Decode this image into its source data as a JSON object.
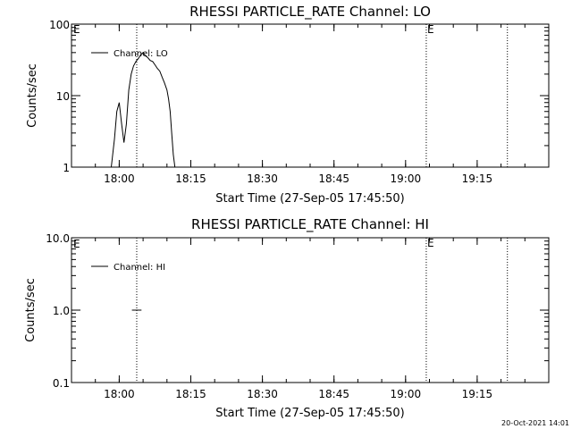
{
  "chart_data": [
    {
      "type": "line",
      "title": "RHESSI PARTICLE_RATE Channel: LO",
      "xlabel": "Start Time (27-Sep-05 17:45:50)",
      "ylabel": "Counts/sec",
      "yscale": "log",
      "ylim": [
        1,
        100
      ],
      "xlim": [
        "17:50:00",
        "19:30:00"
      ],
      "x_ticks": [
        "18:00",
        "18:15",
        "18:30",
        "18:45",
        "19:00",
        "19:15"
      ],
      "y_ticks": [
        "1",
        "10",
        "100"
      ],
      "legend": {
        "position": "top-left",
        "entries": [
          "Channel: LO"
        ]
      },
      "grid": false,
      "vertical_markers": [
        {
          "x": "18:03:40",
          "label": ""
        },
        {
          "x": "19:04:20",
          "label": "E"
        },
        {
          "x": "19:21:20",
          "label": ""
        }
      ],
      "corner_label": "E",
      "series": [
        {
          "name": "Channel: LO",
          "x": [
            "17:58:20",
            "17:59:00",
            "17:59:30",
            "18:00:00",
            "18:00:30",
            "18:01:00",
            "18:01:30",
            "18:02:00",
            "18:02:30",
            "18:03:00",
            "18:03:30",
            "18:04:00",
            "18:04:30",
            "18:05:00",
            "18:05:30",
            "18:06:00",
            "18:06:30",
            "18:07:00",
            "18:07:30",
            "18:08:00",
            "18:08:30",
            "18:09:00",
            "18:09:30",
            "18:10:00",
            "18:10:20",
            "18:10:40",
            "18:11:00",
            "18:11:20",
            "18:11:40"
          ],
          "values": [
            1,
            2.5,
            6,
            8,
            4,
            2.2,
            4,
            12,
            20,
            26,
            30,
            33,
            37,
            40,
            36,
            34,
            31,
            30,
            27,
            24,
            22,
            18,
            15,
            12,
            9,
            6,
            3,
            1.5,
            1
          ]
        }
      ]
    },
    {
      "type": "line",
      "title": "RHESSI PARTICLE_RATE Channel: HI",
      "xlabel": "Start Time (27-Sep-05 17:45:50)",
      "ylabel": "Counts/sec",
      "yscale": "log",
      "ylim": [
        0.1,
        10
      ],
      "xlim": [
        "17:50:00",
        "19:30:00"
      ],
      "x_ticks": [
        "18:00",
        "18:15",
        "18:30",
        "18:45",
        "19:00",
        "19:15"
      ],
      "y_ticks": [
        "0.1",
        "1.0",
        "10.0"
      ],
      "legend": {
        "position": "top-left",
        "entries": [
          "Channel: HI"
        ]
      },
      "grid": false,
      "vertical_markers": [
        {
          "x": "18:03:40",
          "label": ""
        },
        {
          "x": "19:04:20",
          "label": "E"
        },
        {
          "x": "19:21:20",
          "label": ""
        }
      ],
      "corner_label": "E",
      "series": [
        {
          "name": "Channel: HI",
          "x": [
            "18:02:40",
            "18:04:40"
          ],
          "values": [
            1,
            1
          ]
        }
      ]
    }
  ],
  "footer": {
    "timestamp": "20-Oct-2021 14:01"
  }
}
